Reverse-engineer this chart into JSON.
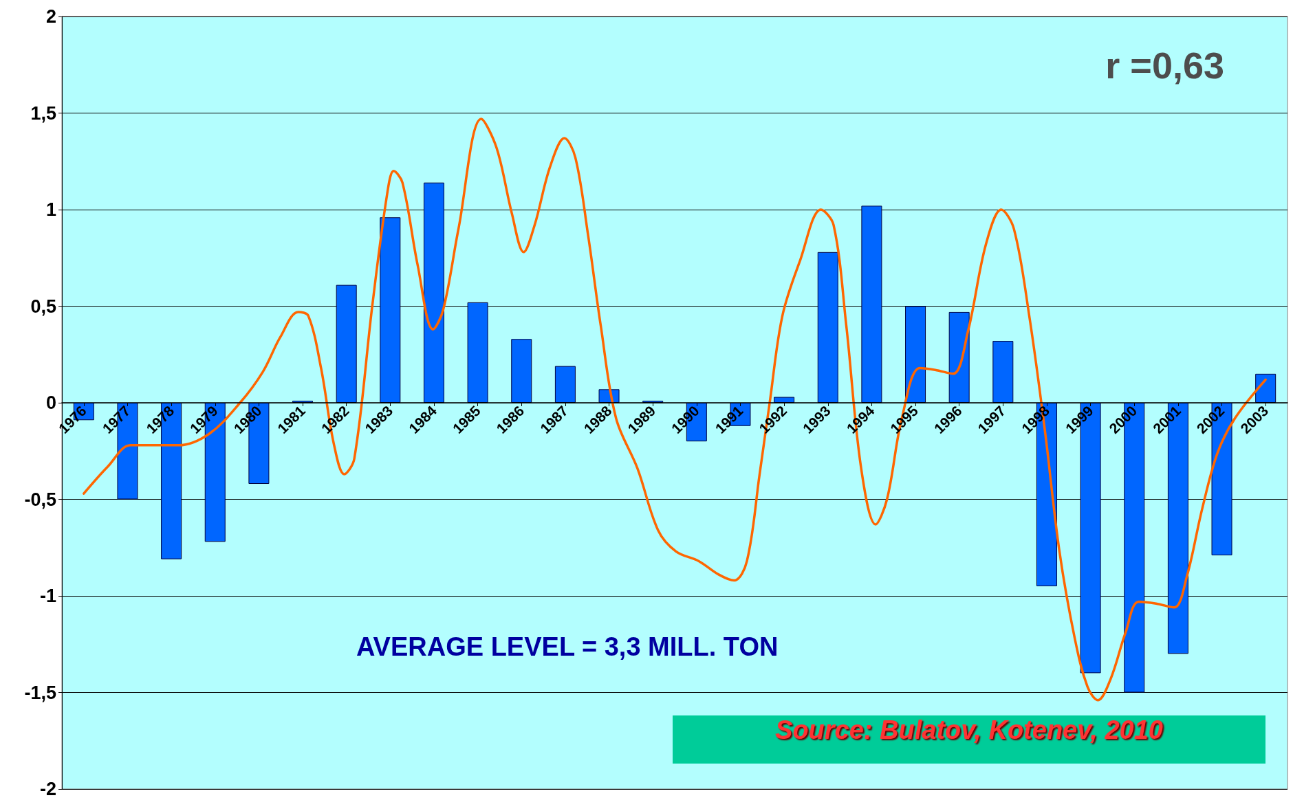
{
  "chart_data": {
    "type": "bar",
    "annotations": [
      "r =0,63",
      "AVERAGE LEVEL = 3,3 MILL. TON",
      "Source: Bulatov, Kotenev, 2010"
    ],
    "xlim": [
      1975.5,
      2003.5
    ],
    "xticks": [
      1976,
      1977,
      1978,
      1979,
      1980,
      1981,
      1982,
      1983,
      1984,
      1985,
      1986,
      1987,
      1988,
      1989,
      1990,
      1991,
      1992,
      1993,
      1994,
      1995,
      1996,
      1997,
      1998,
      1999,
      2000,
      2001,
      2002,
      2003
    ],
    "ylim": [
      -2,
      2
    ],
    "yticks": [
      -2,
      {
        "value": -1.5,
        "label": "-1,5"
      },
      -1,
      {
        "value": -0.5,
        "label": "-0,5"
      },
      0,
      {
        "value": 0.5,
        "label": "0,5"
      },
      1,
      {
        "value": 1.5,
        "label": "1,5"
      },
      2
    ],
    "grid": "y",
    "series": [
      {
        "color": "#0066ff",
        "x": [
          1976,
          1977,
          1978,
          1979,
          1980,
          1981,
          1982,
          1983,
          1984,
          1985,
          1986,
          1987,
          1988,
          1989,
          1990,
          1991,
          1992,
          1993,
          1994,
          1995,
          1996,
          1997,
          1998,
          1999,
          2000,
          2001,
          2002,
          2003
        ],
        "values": [
          -0.09,
          -0.5,
          -0.81,
          -0.72,
          -0.42,
          0.01,
          0.61,
          0.96,
          1.14,
          0.52,
          0.33,
          0.19,
          0.07,
          0.01,
          -0.2,
          -0.12,
          0.03,
          0.78,
          1.02,
          0.5,
          0.47,
          0.32,
          -0.95,
          -1.4,
          -1.5,
          -1.3,
          -0.79,
          0.15
        ]
      },
      {
        "type": "line",
        "color": "#ff6600",
        "marker": "none",
        "line_style": "solid",
        "x": [
          1976,
          1976.55,
          1977.07,
          1977.59,
          1978.17,
          1978.87,
          1979.57,
          1980.09,
          1980.49,
          1980.9,
          1981.13,
          1981.42,
          1981.71,
          1981.95,
          1982.18,
          1982.59,
          1982.93,
          1983.08,
          1983.28,
          1983.63,
          1983.98,
          1984.21,
          1984.56,
          1985.08,
          1985.43,
          1985.78,
          1986.05,
          1986.3,
          1986.65,
          1986.98,
          1987.23,
          1987.52,
          1987.81,
          1988.16,
          1988.65,
          1989.12,
          1989.53,
          1990.05,
          1990.51,
          1990.86,
          1991.15,
          1991.44,
          1991.67,
          1991.96,
          1992.37,
          1992.84,
          1993.13,
          1993.42,
          1993.76,
          1994.09,
          1994.35,
          1994.69,
          1995.1,
          1995.45,
          1995.86,
          1996.2,
          1996.61,
          1996.96,
          1997.25,
          1997.6,
          1997.95,
          1998.29,
          1998.64,
          1998.93,
          1999.17,
          1999.46,
          1999.8,
          2000.1,
          2000.5,
          2000.91,
          2001.2,
          2001.55,
          2001.9,
          2002.3,
          2003.0
        ],
        "values": [
          -0.47,
          -0.33,
          -0.22,
          -0.22,
          -0.22,
          -0.16,
          0,
          0.16,
          0.34,
          0.47,
          0.45,
          0.18,
          -0.21,
          -0.37,
          -0.29,
          0.5,
          1.08,
          1.2,
          1.14,
          0.71,
          0.38,
          0.48,
          0.9,
          1.47,
          1.32,
          0.98,
          0.78,
          0.92,
          1.22,
          1.37,
          1.27,
          0.87,
          0.4,
          -0.08,
          -0.34,
          -0.66,
          -0.77,
          -0.82,
          -0.89,
          -0.92,
          -0.82,
          -0.37,
          0,
          0.45,
          0.74,
          1.0,
          0.92,
          0.4,
          -0.34,
          -0.63,
          -0.5,
          -0.08,
          0.18,
          0.17,
          0.15,
          0.37,
          0.82,
          1.0,
          0.9,
          0.45,
          -0.13,
          -0.77,
          -1.22,
          -1.47,
          -1.54,
          -1.43,
          -1.19,
          -1.03,
          -1.04,
          -1.06,
          -0.9,
          -0.55,
          -0.26,
          -0.08,
          0.12
        ]
      }
    ]
  }
}
